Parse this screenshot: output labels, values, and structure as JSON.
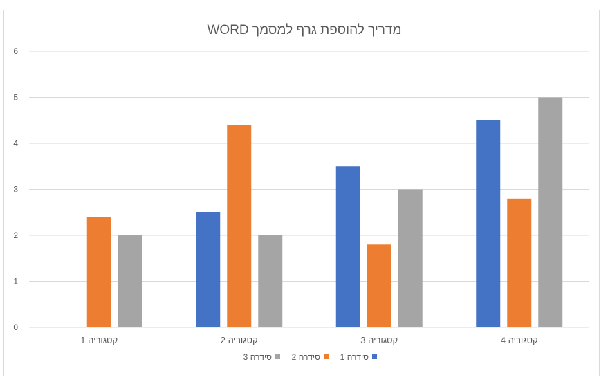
{
  "chart_data": {
    "type": "bar",
    "title": "מדריך להוספת גרף למסמך WORD",
    "xlabel": "",
    "ylabel": "",
    "categories": [
      "קטגוריה 1",
      "קטגוריה 2",
      "קטגוריה 3",
      "קטגוריה 4"
    ],
    "series": [
      {
        "name": "סידרה 1",
        "values": [
          0,
          2.5,
          3.5,
          4.5
        ],
        "color": "#4472c4"
      },
      {
        "name": "סידרה 2",
        "values": [
          2.4,
          4.4,
          1.8,
          2.8
        ],
        "color": "#ed7d31"
      },
      {
        "name": "סידרה 3",
        "values": [
          2,
          2,
          3,
          5
        ],
        "color": "#a5a5a5"
      }
    ],
    "ylim": [
      0,
      6
    ],
    "yticks": [
      0,
      1,
      2,
      3,
      4,
      5,
      6
    ],
    "grid": true,
    "legend_position": "bottom"
  }
}
